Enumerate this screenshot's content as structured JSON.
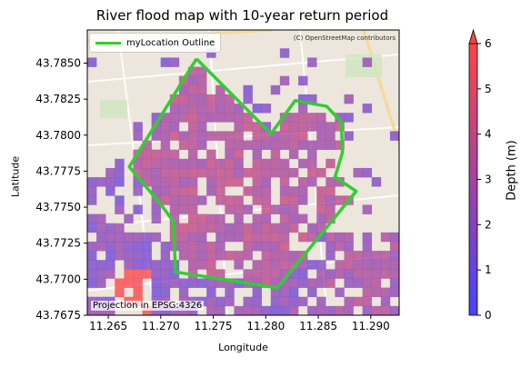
{
  "chart_data": {
    "type": "heatmap",
    "title": "River flood map with 10-year return period",
    "xlabel": "Longitude",
    "ylabel": "Latitude",
    "xlim": [
      11.263,
      11.2927
    ],
    "ylim": [
      43.7675,
      43.7873
    ],
    "xticks": [
      "11.265",
      "11.270",
      "11.275",
      "11.280",
      "11.285",
      "11.290"
    ],
    "xtick_values": [
      11.265,
      11.27,
      11.275,
      11.28,
      11.285,
      11.29
    ],
    "yticks": [
      "43.7675",
      "43.7700",
      "43.7725",
      "43.7750",
      "43.7775",
      "43.7800",
      "43.7825",
      "43.7850"
    ],
    "ytick_values": [
      43.7675,
      43.77,
      43.7725,
      43.775,
      43.7775,
      43.78,
      43.7825,
      43.785
    ],
    "colorbar": {
      "label": "Depth (m)",
      "range": [
        0,
        6
      ],
      "ticks": [
        "0",
        "1",
        "2",
        "3",
        "4",
        "5",
        "6"
      ],
      "low_color": "#4444ff",
      "high_color": "#ff4444",
      "extend": "max"
    },
    "legend": {
      "entries": [
        {
          "label": "myLocation Outline",
          "color": "#33cc33"
        }
      ],
      "placement": "upper-left"
    },
    "outline": {
      "name": "myLocation Outline",
      "lon": [
        11.2734,
        11.2805,
        11.2828,
        11.2858,
        11.2872,
        11.2873,
        11.2866,
        11.2886,
        11.2811,
        11.2714,
        11.2712,
        11.27,
        11.267,
        11.2734
      ],
      "lat": [
        43.7853,
        43.7801,
        43.7824,
        43.782,
        43.7809,
        43.7788,
        43.7771,
        43.7761,
        43.7694,
        43.7705,
        43.774,
        43.7752,
        43.7778,
        43.7853
      ]
    },
    "attribution": "(C) OpenStreetMap contributors",
    "projection_note": "Projection in EPSG:4326"
  }
}
